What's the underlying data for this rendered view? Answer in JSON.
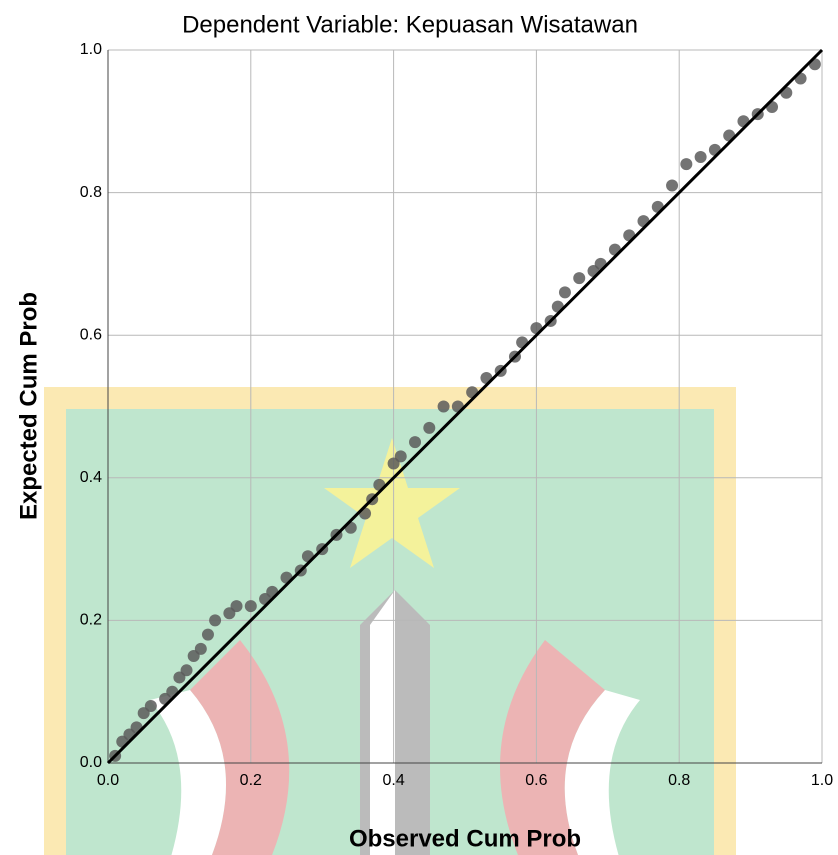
{
  "chart_data": {
    "type": "scatter",
    "title": "Dependent Variable: Kepuasan Wisatawan",
    "x_label": "Observed Cum Prob",
    "y_label": "Expected Cum Prob",
    "xlim": [
      0,
      1
    ],
    "ylim": [
      0,
      1
    ],
    "xticks": [
      {
        "value": 0,
        "label": "0.0"
      },
      {
        "value": 0.2,
        "label": "0.2"
      },
      {
        "value": 0.4,
        "label": "0.4"
      },
      {
        "value": 0.6,
        "label": "0.6"
      },
      {
        "value": 0.8,
        "label": "0.8"
      },
      {
        "value": 1,
        "label": "1.0"
      }
    ],
    "yticks": [
      {
        "value": 0,
        "label": "0.0"
      },
      {
        "value": 0.2,
        "label": "0.2"
      },
      {
        "value": 0.4,
        "label": "0.4"
      },
      {
        "value": 0.6,
        "label": "0.6"
      },
      {
        "value": 0.8,
        "label": "0.8"
      },
      {
        "value": 1,
        "label": "1.0"
      }
    ],
    "grid": true,
    "color": "#5a5a5a",
    "line_color": "#000000",
    "x": [
      0.01,
      0.02,
      0.03,
      0.04,
      0.05,
      0.06,
      0.08,
      0.09,
      0.1,
      0.11,
      0.12,
      0.13,
      0.14,
      0.15,
      0.17,
      0.18,
      0.2,
      0.22,
      0.23,
      0.25,
      0.27,
      0.28,
      0.3,
      0.32,
      0.34,
      0.36,
      0.37,
      0.38,
      0.4,
      0.41,
      0.43,
      0.45,
      0.47,
      0.49,
      0.51,
      0.53,
      0.55,
      0.57,
      0.58,
      0.6,
      0.62,
      0.63,
      0.64,
      0.66,
      0.68,
      0.69,
      0.71,
      0.73,
      0.75,
      0.77,
      0.79,
      0.81,
      0.83,
      0.85,
      0.87,
      0.89,
      0.91,
      0.93,
      0.95,
      0.97,
      0.99
    ],
    "y": [
      0.01,
      0.03,
      0.04,
      0.05,
      0.07,
      0.08,
      0.09,
      0.1,
      0.12,
      0.13,
      0.15,
      0.16,
      0.18,
      0.2,
      0.21,
      0.22,
      0.22,
      0.23,
      0.24,
      0.26,
      0.27,
      0.29,
      0.3,
      0.32,
      0.33,
      0.35,
      0.37,
      0.39,
      0.42,
      0.43,
      0.45,
      0.47,
      0.5,
      0.5,
      0.52,
      0.54,
      0.55,
      0.57,
      0.59,
      0.61,
      0.62,
      0.64,
      0.66,
      0.68,
      0.69,
      0.7,
      0.72,
      0.74,
      0.76,
      0.78,
      0.81,
      0.84,
      0.85,
      0.86,
      0.88,
      0.9,
      0.91,
      0.92,
      0.94,
      0.96,
      0.98
    ]
  }
}
